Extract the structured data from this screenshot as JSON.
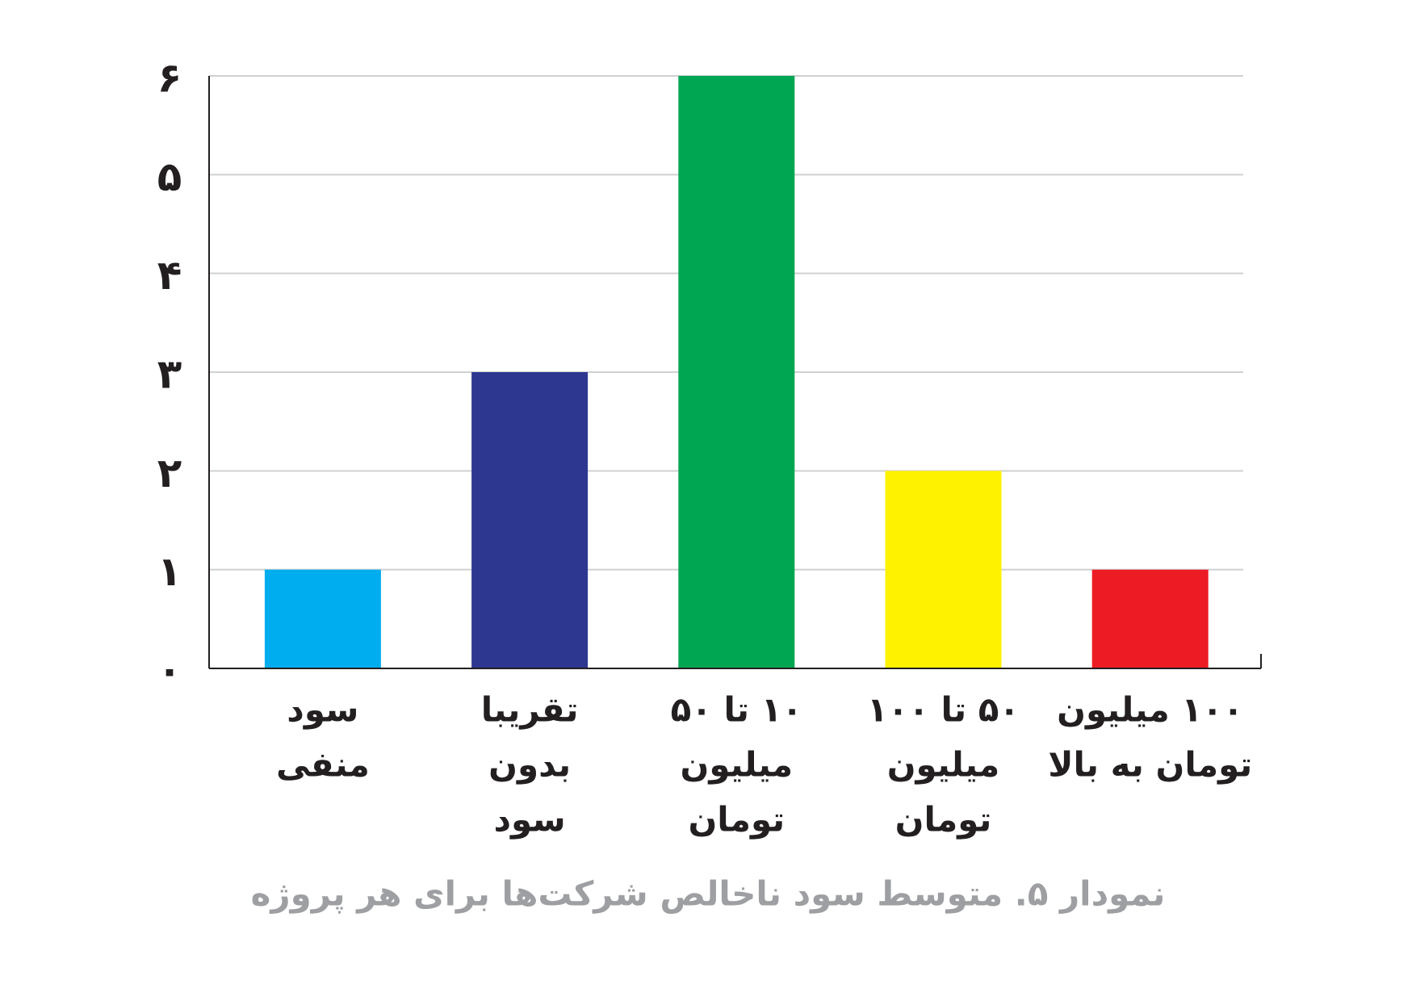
{
  "chart_data": {
    "type": "bar",
    "title": "نمودار ۵. متوسط سود ناخالص شرکت‌ها برای هر پروژه",
    "categories": [
      [
        "سود",
        "منفی"
      ],
      [
        "تقریبا",
        "بدون",
        "سود"
      ],
      [
        "۱۰ تا ۵۰",
        "میلیون",
        "تومان"
      ],
      [
        "۵۰ تا ۱۰۰",
        "میلیون",
        "تومان"
      ],
      [
        "۱۰۰ میلیون",
        "تومان به بالا"
      ]
    ],
    "values": [
      1,
      3,
      6,
      2,
      1
    ],
    "colors": [
      "#00aeef",
      "#2e3790",
      "#00a651",
      "#fff200",
      "#ed1c24"
    ],
    "ylim": [
      0,
      6
    ],
    "yticks": [
      {
        "value": 0,
        "label": "۰"
      },
      {
        "value": 1,
        "label": "۱"
      },
      {
        "value": 2,
        "label": "۲"
      },
      {
        "value": 3,
        "label": "۳"
      },
      {
        "value": 4,
        "label": "۴"
      },
      {
        "value": 5,
        "label": "۵"
      },
      {
        "value": 6,
        "label": "۶"
      }
    ],
    "grid": true
  }
}
